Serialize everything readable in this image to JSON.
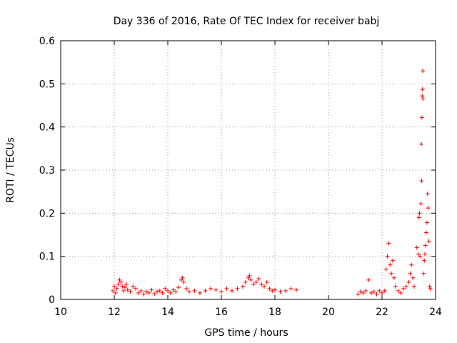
{
  "chart_data": {
    "type": "scatter",
    "title": "Day 336 of 2016, Rate Of TEC Index for receiver babj",
    "xlabel": "GPS time / hours",
    "ylabel": "ROTI / TECUs",
    "xlim": [
      10,
      24
    ],
    "ylim": [
      0,
      0.6
    ],
    "xticks": [
      "10",
      "12",
      "14",
      "16",
      "18",
      "20",
      "22",
      "24"
    ],
    "yticks": [
      "0",
      "0.1",
      "0.2",
      "0.3",
      "0.4",
      "0.5",
      "0.6"
    ],
    "grid": true,
    "marker": "+",
    "color": "#ff0000",
    "series": [
      {
        "points": [
          [
            11.95,
            0.02
          ],
          [
            12.0,
            0.03
          ],
          [
            12.05,
            0.015
          ],
          [
            12.1,
            0.025
          ],
          [
            12.15,
            0.035
          ],
          [
            12.2,
            0.045
          ],
          [
            12.25,
            0.04
          ],
          [
            12.3,
            0.03
          ],
          [
            12.35,
            0.02
          ],
          [
            12.4,
            0.028
          ],
          [
            12.45,
            0.035
          ],
          [
            12.5,
            0.022
          ],
          [
            12.6,
            0.018
          ],
          [
            12.7,
            0.03
          ],
          [
            12.8,
            0.025
          ],
          [
            12.9,
            0.015
          ],
          [
            13.0,
            0.02
          ],
          [
            13.1,
            0.012
          ],
          [
            13.2,
            0.018
          ],
          [
            13.3,
            0.015
          ],
          [
            13.4,
            0.022
          ],
          [
            13.5,
            0.013
          ],
          [
            13.6,
            0.018
          ],
          [
            13.7,
            0.02
          ],
          [
            13.8,
            0.015
          ],
          [
            13.9,
            0.025
          ],
          [
            14.0,
            0.02
          ],
          [
            14.1,
            0.015
          ],
          [
            14.2,
            0.022
          ],
          [
            14.3,
            0.018
          ],
          [
            14.4,
            0.028
          ],
          [
            14.5,
            0.045
          ],
          [
            14.55,
            0.05
          ],
          [
            14.6,
            0.04
          ],
          [
            14.7,
            0.025
          ],
          [
            14.8,
            0.018
          ],
          [
            15.0,
            0.02
          ],
          [
            15.2,
            0.015
          ],
          [
            15.4,
            0.02
          ],
          [
            15.6,
            0.025
          ],
          [
            15.8,
            0.022
          ],
          [
            16.0,
            0.018
          ],
          [
            16.2,
            0.025
          ],
          [
            16.4,
            0.02
          ],
          [
            16.6,
            0.025
          ],
          [
            16.8,
            0.03
          ],
          [
            16.9,
            0.04
          ],
          [
            17.0,
            0.05
          ],
          [
            17.05,
            0.055
          ],
          [
            17.1,
            0.045
          ],
          [
            17.2,
            0.035
          ],
          [
            17.3,
            0.04
          ],
          [
            17.4,
            0.048
          ],
          [
            17.5,
            0.035
          ],
          [
            17.6,
            0.03
          ],
          [
            17.7,
            0.04
          ],
          [
            17.8,
            0.025
          ],
          [
            17.9,
            0.02
          ],
          [
            18.0,
            0.022
          ],
          [
            18.2,
            0.018
          ],
          [
            18.4,
            0.02
          ],
          [
            18.6,
            0.025
          ],
          [
            18.8,
            0.022
          ],
          [
            21.1,
            0.012
          ],
          [
            21.2,
            0.018
          ],
          [
            21.3,
            0.015
          ],
          [
            21.4,
            0.02
          ],
          [
            21.5,
            0.045
          ],
          [
            21.6,
            0.015
          ],
          [
            21.7,
            0.018
          ],
          [
            21.8,
            0.012
          ],
          [
            21.9,
            0.02
          ],
          [
            22.0,
            0.015
          ],
          [
            22.1,
            0.02
          ],
          [
            22.15,
            0.07
          ],
          [
            22.2,
            0.1
          ],
          [
            22.25,
            0.13
          ],
          [
            22.3,
            0.08
          ],
          [
            22.35,
            0.06
          ],
          [
            22.4,
            0.09
          ],
          [
            22.45,
            0.05
          ],
          [
            22.5,
            0.03
          ],
          [
            22.6,
            0.02
          ],
          [
            22.7,
            0.015
          ],
          [
            22.8,
            0.025
          ],
          [
            22.9,
            0.03
          ],
          [
            23.0,
            0.04
          ],
          [
            23.05,
            0.06
          ],
          [
            23.1,
            0.08
          ],
          [
            23.15,
            0.05
          ],
          [
            23.2,
            0.03
          ],
          [
            23.3,
            0.12
          ],
          [
            23.35,
            0.105
          ],
          [
            23.38,
            0.19
          ],
          [
            23.4,
            0.2
          ],
          [
            23.42,
            0.1
          ],
          [
            23.45,
            0.222
          ],
          [
            23.47,
            0.36
          ],
          [
            23.48,
            0.275
          ],
          [
            23.49,
            0.422
          ],
          [
            23.5,
            0.472
          ],
          [
            23.51,
            0.487
          ],
          [
            23.52,
            0.53
          ],
          [
            23.53,
            0.465
          ],
          [
            23.55,
            0.06
          ],
          [
            23.58,
            0.09
          ],
          [
            23.6,
            0.105
          ],
          [
            23.62,
            0.125
          ],
          [
            23.65,
            0.155
          ],
          [
            23.68,
            0.178
          ],
          [
            23.7,
            0.245
          ],
          [
            23.72,
            0.212
          ],
          [
            23.75,
            0.135
          ],
          [
            23.78,
            0.03
          ],
          [
            23.8,
            0.025
          ]
        ]
      }
    ]
  }
}
